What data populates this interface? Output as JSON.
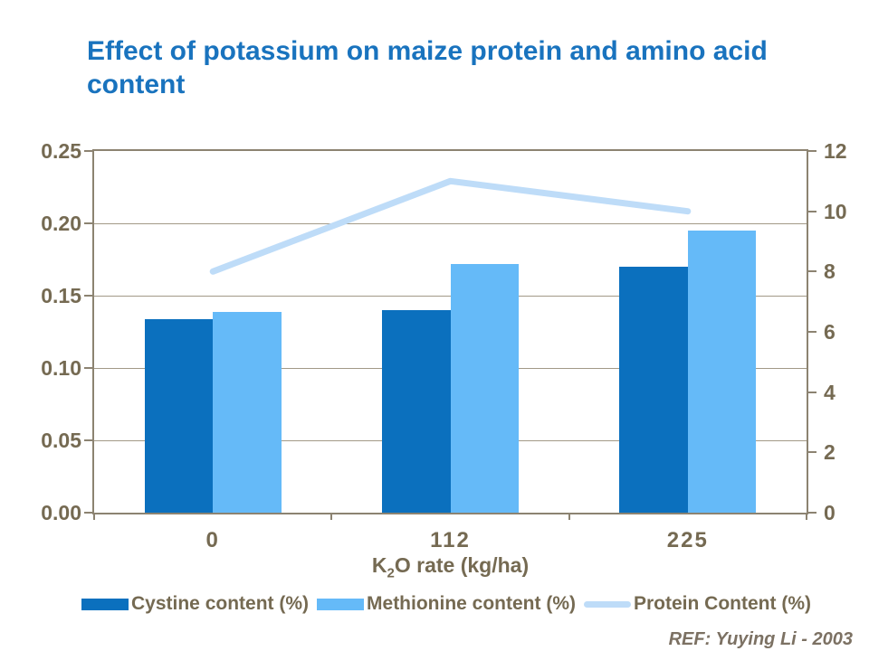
{
  "slide": {
    "title": "Effect of potassium on maize protein and amino acid content",
    "footer_ref": "REF: Yuying Li - 2003"
  },
  "chart_data": {
    "type": "bar",
    "subtype": "bar+line combo, dual axis",
    "title": "Effect of potassium on maize protein and amino acid content",
    "categories": [
      "0",
      "112",
      "225"
    ],
    "series": [
      {
        "name": "Cystine content (%)",
        "type": "bar",
        "axis": "left",
        "color": "#0B70BE",
        "values": [
          0.134,
          0.14,
          0.17
        ]
      },
      {
        "name": "Methionine content (%)",
        "type": "bar",
        "axis": "left",
        "color": "#65BAF8",
        "values": [
          0.139,
          0.172,
          0.195
        ]
      },
      {
        "name": "Protein Content (%)",
        "type": "line",
        "axis": "right",
        "color": "#BEDCF8",
        "values": [
          8,
          11,
          10
        ]
      }
    ],
    "xlabel": {
      "base": "K",
      "sub": "2",
      "rest": "O rate (kg/ha)"
    },
    "left_axis": {
      "min": 0,
      "max": 0.25,
      "ticks": [
        "0.25",
        "0.20",
        "0.15",
        "0.10",
        "0.05",
        "0.00"
      ]
    },
    "right_axis": {
      "min": 0,
      "max": 12,
      "ticks": [
        "12",
        "10",
        "8",
        "6",
        "4",
        "2",
        "0"
      ]
    },
    "grid": true,
    "legend_position": "bottom"
  },
  "colors": {
    "title_text": "#1973BE",
    "axis_text": "#756A52",
    "axis_line": "#8C8371",
    "gridline": "#A29987",
    "ref_text": "#7C7163",
    "background": "#FFFFFF"
  }
}
